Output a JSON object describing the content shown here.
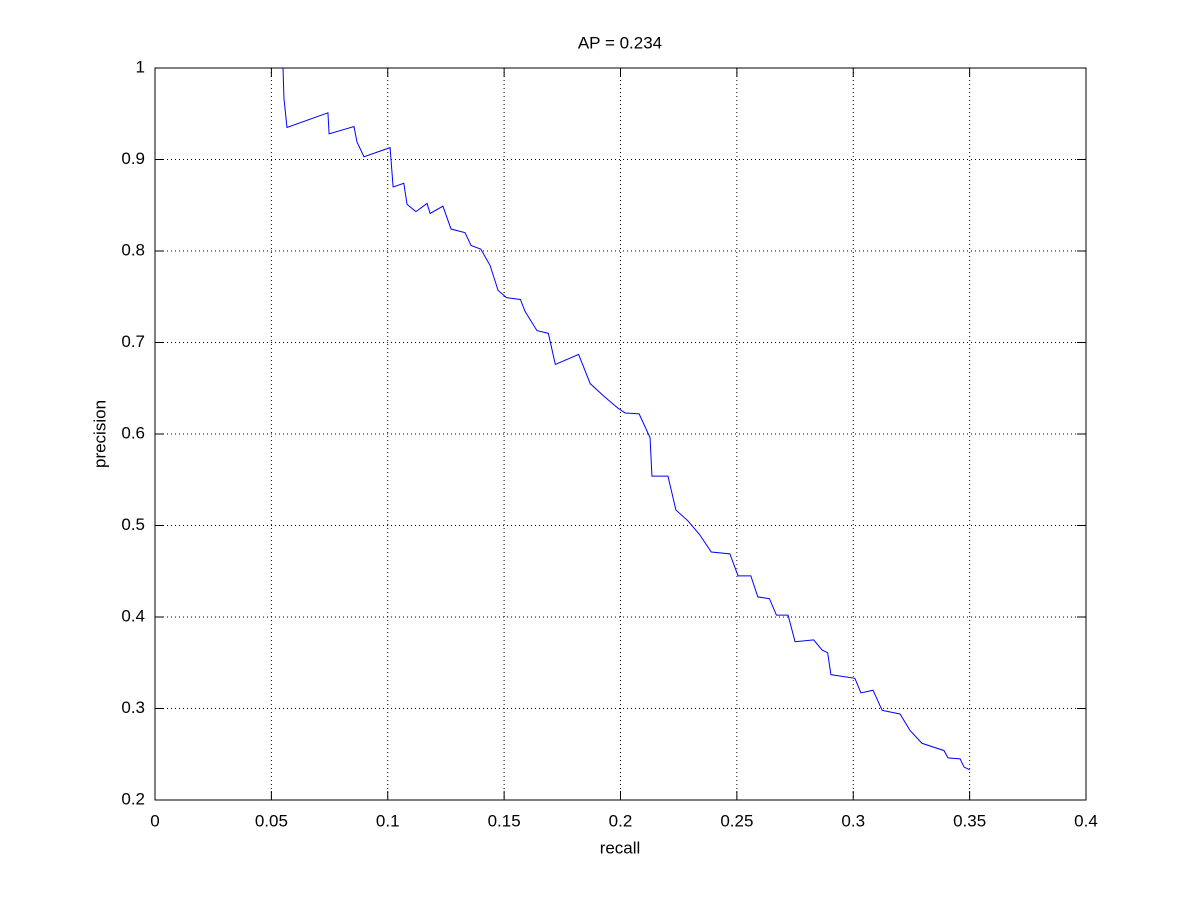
{
  "chart_data": {
    "type": "line",
    "title": "AP = 0.234",
    "xlabel": "recall",
    "ylabel": "precision",
    "x": [
      0.055,
      0.0554,
      0.0567,
      0.0743,
      0.0748,
      0.0855,
      0.0868,
      0.0898,
      0.101,
      0.1023,
      0.1069,
      0.1083,
      0.1121,
      0.1169,
      0.1182,
      0.1237,
      0.1272,
      0.1332,
      0.1358,
      0.14,
      0.144,
      0.1474,
      0.151,
      0.157,
      0.159,
      0.1641,
      0.169,
      0.172,
      0.182,
      0.187,
      0.193,
      0.199,
      0.202,
      0.208,
      0.2127,
      0.2135,
      0.2204,
      0.2238,
      0.229,
      0.234,
      0.239,
      0.247,
      0.2505,
      0.256,
      0.259,
      0.264,
      0.267,
      0.272,
      0.275,
      0.283,
      0.2866,
      0.289,
      0.2904,
      0.3007,
      0.3033,
      0.3085,
      0.3124,
      0.3201,
      0.3244,
      0.3295,
      0.339,
      0.3407,
      0.3459,
      0.3476,
      0.35
    ],
    "values": [
      1.0,
      0.967,
      0.935,
      0.951,
      0.928,
      0.936,
      0.919,
      0.903,
      0.913,
      0.87,
      0.874,
      0.851,
      0.843,
      0.852,
      0.841,
      0.849,
      0.824,
      0.82,
      0.806,
      0.802,
      0.784,
      0.757,
      0.749,
      0.747,
      0.734,
      0.713,
      0.71,
      0.676,
      0.687,
      0.655,
      0.641,
      0.628,
      0.623,
      0.622,
      0.596,
      0.554,
      0.554,
      0.517,
      0.505,
      0.49,
      0.471,
      0.469,
      0.445,
      0.445,
      0.422,
      0.42,
      0.402,
      0.402,
      0.373,
      0.375,
      0.364,
      0.361,
      0.337,
      0.333,
      0.317,
      0.32,
      0.298,
      0.294,
      0.276,
      0.262,
      0.254,
      0.246,
      0.245,
      0.236,
      0.233
    ],
    "color": "#0000ff",
    "xlim": [
      0,
      0.4
    ],
    "xticks": [
      0,
      0.05,
      0.1,
      0.15,
      0.2,
      0.25,
      0.3,
      0.35,
      0.4
    ],
    "ylim": [
      0.2,
      1
    ],
    "yticks": [
      0.2,
      0.3,
      0.4,
      0.5,
      0.6,
      0.7,
      0.8,
      0.9,
      1
    ],
    "grid": true
  }
}
